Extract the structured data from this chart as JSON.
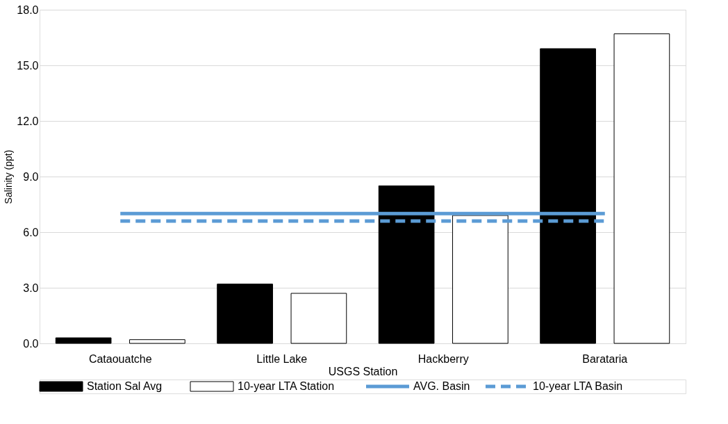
{
  "chart_data": {
    "type": "bar",
    "xlabel": "USGS Station",
    "ylabel": "Salinity (ppt)",
    "categories": [
      "Cataouatche",
      "Little Lake",
      "Hackberry",
      "Barataria"
    ],
    "series": [
      {
        "name": "Station Sal Avg",
        "color": "#000000",
        "values": [
          0.3,
          3.2,
          8.5,
          15.9
        ]
      },
      {
        "name": "10-year LTA Station",
        "color": "#ffffff",
        "values": [
          0.2,
          2.7,
          6.9,
          16.7
        ]
      },
      {
        "name": "AVG. Basin",
        "type": "line",
        "color": "#5b9bd5",
        "line_style": "solid",
        "values": [
          7.0,
          7.0,
          7.0,
          7.0
        ]
      },
      {
        "name": "10-year LTA Basin",
        "type": "line",
        "color": "#5b9bd5",
        "line_style": "dashed",
        "values": [
          6.6,
          6.6,
          6.6,
          6.6
        ]
      }
    ],
    "ylim": [
      0,
      18
    ],
    "yticks": [
      {
        "value": 0,
        "label": "0.0"
      },
      {
        "value": 3,
        "label": "3.0"
      },
      {
        "value": 6,
        "label": "6.0"
      },
      {
        "value": 9,
        "label": "9.0"
      },
      {
        "value": 12,
        "label": "12.0"
      },
      {
        "value": 15,
        "label": "15.0"
      },
      {
        "value": 18,
        "label": "18.0"
      }
    ],
    "grid": "y",
    "legend": "bottom"
  }
}
